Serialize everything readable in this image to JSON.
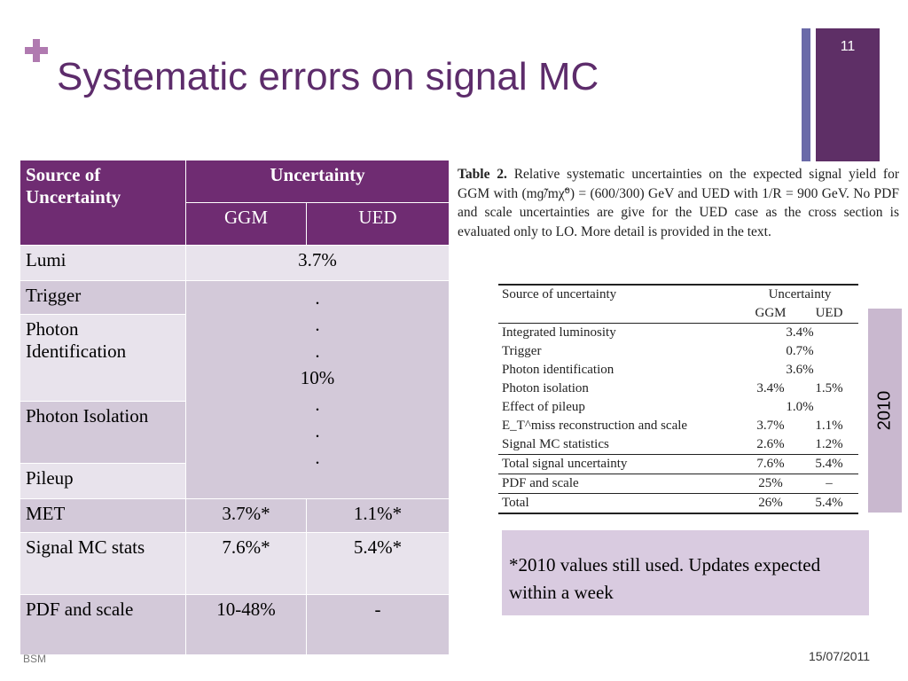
{
  "slide": {
    "title": "Systematic errors on signal MC",
    "number": "11",
    "date": "15/07/2011",
    "footer_fragment": "BSM",
    "side_label": "2010"
  },
  "table": {
    "header_source": "Source of Uncertainty",
    "header_uncertainty": "Uncertainty",
    "header_ggm": "GGM",
    "header_ued": "UED",
    "rows": [
      {
        "source": "Lumi",
        "value": "3.7%"
      },
      {
        "source": "Trigger"
      },
      {
        "source": "Photon Identification"
      },
      {
        "source": "Photon Isolation"
      },
      {
        "source": "Pileup"
      },
      {
        "source": "MET",
        "ggm": "3.7%*",
        "ued": "1.1%*"
      },
      {
        "source": "Signal MC stats",
        "ggm": "7.6%*",
        "ued": "5.4%*"
      },
      {
        "source": "PDF and scale",
        "ggm": "10-48%",
        "ued": "-"
      }
    ],
    "merged": {
      "dot1": ".",
      "dot2": ".",
      "dot3": ".",
      "value": "10%",
      "dot4": ".",
      "dot5": ".",
      "dot6": "."
    }
  },
  "caption": {
    "label": "Table 2.",
    "text": "Relative systematic uncertainties on the expected signal yield for GGM with (mɡ̃/mχ̃⁰) = (600/300) GeV and UED with 1/R = 900 GeV. No PDF and scale uncertainties are give for the UED case as the cross section is evaluated only to LO. More detail is provided in the text."
  },
  "paper_table": {
    "header_source": "Source of uncertainty",
    "header_uncertainty": "Uncertainty",
    "header_ggm": "GGM",
    "header_ued": "UED",
    "rows": [
      {
        "source": "Integrated luminosity",
        "span": "3.4%"
      },
      {
        "source": "Trigger",
        "span": "0.7%"
      },
      {
        "source": "Photon identification",
        "span": "3.6%"
      },
      {
        "source": "Photon isolation",
        "ggm": "3.4%",
        "ued": "1.5%"
      },
      {
        "source": "Effect of pileup",
        "span": "1.0%"
      },
      {
        "source": "E_T^miss reconstruction and scale",
        "ggm": "3.7%",
        "ued": "1.1%"
      },
      {
        "source": "Signal MC statistics",
        "ggm": "2.6%",
        "ued": "1.2%"
      }
    ],
    "total_signal": {
      "source": "Total signal uncertainty",
      "ggm": "7.6%",
      "ued": "5.4%"
    },
    "pdf": {
      "source": "PDF and scale",
      "ggm": "25%",
      "ued": "–"
    },
    "total": {
      "source": "Total",
      "ggm": "26%",
      "ued": "5.4%"
    }
  },
  "note": "*2010 values still used.  Updates expected within a week"
}
